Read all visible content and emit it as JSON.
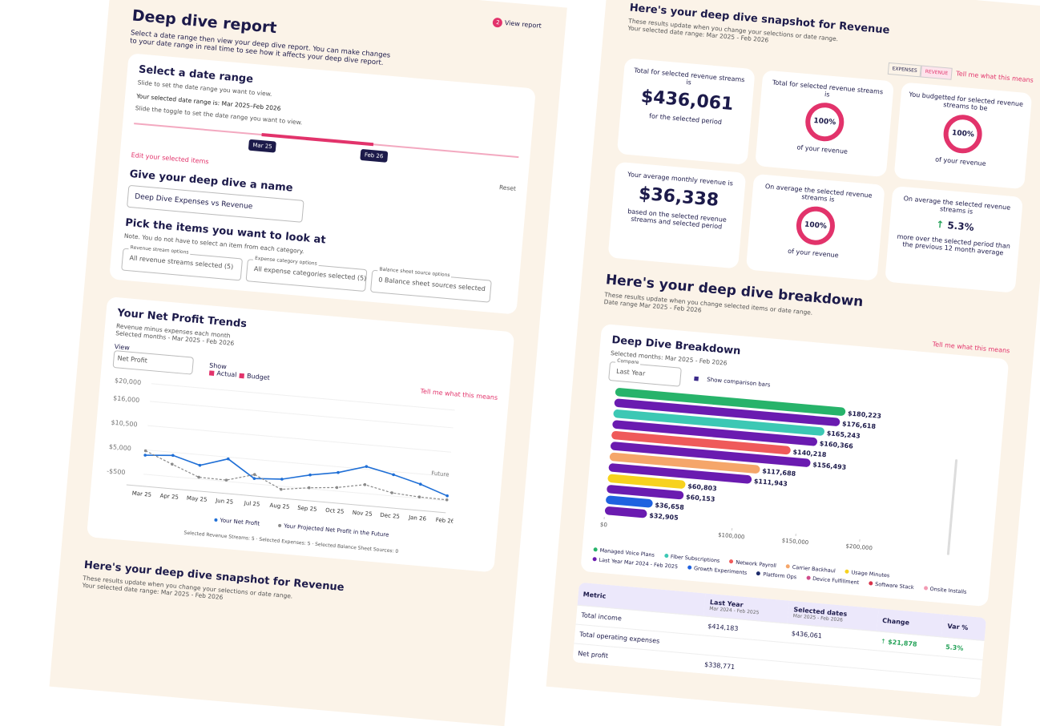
{
  "left": {
    "stepper": {
      "step": "2",
      "label": "View report"
    },
    "title": "Deep dive report",
    "intro": "Select a date range then view your deep dive report. You can make changes to your date range in real time to see how it affects your deep dive report.",
    "date_range": {
      "heading": "Select a date range",
      "hint": "Slide to set the date range you want to view.",
      "selected": "Your selected date range is: Mar 2025–Feb 2026",
      "slider_hint": "Slide the toggle to set the date range you want to view.",
      "start": "Mar 25",
      "end": "Feb 26",
      "edit": "Edit your selected items",
      "reset": "Reset"
    },
    "name": {
      "heading": "Give your deep dive a name",
      "value": "Deep Dive Expenses vs Revenue"
    },
    "items": {
      "heading": "Pick the items you want to look at",
      "note": "Note. You do not have to select an item from each category.",
      "selects": [
        {
          "label": "Revenue stream options",
          "value": "All revenue streams selected (5)"
        },
        {
          "label": "Expense category options",
          "value": "All expense categories selected (5)"
        },
        {
          "label": "Balance sheet source options",
          "value": "0 Balance sheet sources selected"
        }
      ]
    },
    "trends": {
      "title": "Your Net Profit Trends",
      "subtitle": "Revenue minus expenses each month",
      "months": "Selected months - Mar 2025 - Feb 2026",
      "view_label": "View",
      "view_value": "Net Profit",
      "show_label": "Show",
      "show": [
        "Actual",
        "Budget"
      ],
      "help": "Tell me what this means",
      "future": "Future",
      "chart": {
        "type": "line",
        "categories": [
          "Mar 25",
          "Apr 25",
          "May 25",
          "Jun 25",
          "Jul 25",
          "Aug 25",
          "Sep 25",
          "Oct 25",
          "Nov 25",
          "Dec 25",
          "Jan 26",
          "Feb 26"
        ],
        "series": [
          {
            "name": "Your Net Profit",
            "color": "#1f6fd6",
            "values": [
              3800,
              4300,
              2600,
              4600,
              700,
              1100,
              2600,
              3700,
              5600,
              4300,
              2700,
              600
            ]
          },
          {
            "name": "Your Projected Net Profit in the Future",
            "color": "#8a8a8a",
            "values": [
              4800,
              2300,
              -100,
              -200,
              1600,
              -1200,
              -300,
              300,
              1500,
              200,
              -200,
              -300
            ]
          }
        ],
        "ylim": [
          -2500,
          21000
        ],
        "yticks": [
          {
            "value": 20000,
            "label": "$20,000"
          },
          {
            "value": 16000,
            "label": "$16,000"
          },
          {
            "value": 10500,
            "label": "$10,500"
          },
          {
            "value": 5000,
            "label": "$5,000"
          },
          {
            "value": -500,
            "label": "-$500"
          }
        ]
      },
      "footer": "Selected Revenue Streams: 5 · Selected Expenses: 5 · Selected Balance Sheet Sources: 0"
    },
    "snapshot_repeat": {
      "title": "Here's your deep dive snapshot for Revenue",
      "subtitle": "These results update when you change your selections or date range.",
      "range": "Your selected date range: Mar 2025 - Feb 2026"
    }
  },
  "right": {
    "snapshot": {
      "title": "Here's your deep dive snapshot for Revenue",
      "subtitle": "These results update when you change your selections or date range.",
      "range": "Your selected date range: Mar 2025 - Feb 2026",
      "toggle": [
        "EXPENSES",
        "REVENUE"
      ],
      "help": "Tell me what this means",
      "cards": [
        {
          "top": "Total for selected revenue streams is",
          "big": "$436,061",
          "bottom": "for the selected period"
        },
        {
          "top": "Total for selected revenue streams is",
          "ring": "100%",
          "bottom": "of your revenue"
        },
        {
          "top": "You budgetted for selected revenue streams to be",
          "ring": "100%",
          "bottom": "of your revenue"
        },
        {
          "top": "Your average monthly revenue is",
          "big": "$36,338",
          "bottom": "based on the selected revenue streams and selected period"
        },
        {
          "top": "On average the selected revenue streams is",
          "ring": "100%",
          "bottom": "of your revenue"
        },
        {
          "top": "On average the selected revenue streams is",
          "up": "5.3%",
          "bottom": "more over the selected period than the previous 12 month average"
        }
      ]
    },
    "breakdown": {
      "title": "Here's your deep dive breakdown",
      "subtitle": "These results update when you change selected items or date range.",
      "range": "Date range Mar 2025 - Feb 2026",
      "help": "Tell me what this means",
      "card_title": "Deep Dive Breakdown",
      "months": "Selected months: Mar 2025 - Feb 2026",
      "compare_label": "Compare",
      "compare_value": "Last Year",
      "checkbox": "Show comparison bars",
      "chart": {
        "type": "bar",
        "orientation": "horizontal",
        "values": [
          180223,
          176618,
          165243,
          160366,
          140218,
          156493,
          117688,
          111943,
          60803,
          60153,
          36658,
          32905
        ],
        "value_labels": [
          "$180,223",
          "$176,618",
          "$165,243",
          "$160,366",
          "$140,218",
          "$156,493",
          "$117,688",
          "$111,943",
          "$60,803",
          "$60,153",
          "$36,658",
          "$32,905"
        ],
        "colors": [
          "#27b36a",
          "#6a1bb0",
          "#3cc8b4",
          "#6a1bb0",
          "#ef5a5a",
          "#6a1bb0",
          "#f5a66a",
          "#6a1bb0",
          "#f7d21e",
          "#6a1bb0",
          "#1f62e0",
          "#6a1bb0"
        ],
        "xlim": [
          0,
          200000
        ],
        "xticks": [
          {
            "value": 0,
            "label": "$0"
          },
          {
            "value": 100000,
            "label": "$100,000"
          },
          {
            "value": 150000,
            "label": "$150,000"
          },
          {
            "value": 200000,
            "label": "$200,000"
          }
        ],
        "legend": [
          {
            "name": "Managed Voice Plans",
            "color": "#27b36a"
          },
          {
            "name": "Fiber Subscriptions",
            "color": "#3cc8b4"
          },
          {
            "name": "Network Payroll",
            "color": "#ef5a5a"
          },
          {
            "name": "Carrier Backhaul",
            "color": "#f5a66a"
          },
          {
            "name": "Usage Minutes",
            "color": "#f7d21e"
          },
          {
            "name": "Last Year Mar 2024 - Feb 2025",
            "color": "#6a1bb0"
          },
          {
            "name": "Growth Experiments",
            "color": "#1f62e0"
          },
          {
            "name": "Platform Ops",
            "color": "#1c2a6a"
          },
          {
            "name": "Device Fulfillment",
            "color": "#d04b8a"
          },
          {
            "name": "Software Stack",
            "color": "#d8324a"
          },
          {
            "name": "Onsite Installs",
            "color": "#f29bb3"
          }
        ]
      }
    },
    "table": {
      "headers": [
        "Metric",
        "Last Year",
        "Selected dates",
        "Change",
        "Var %"
      ],
      "subheaders": [
        "Mar 2024 - Feb 2025",
        "Mar 2025 - Feb 2026"
      ],
      "rows": [
        [
          "Total income",
          "$414,183",
          "$436,061",
          "$21,878",
          "5.3%"
        ],
        [
          "Total operating expenses"
        ],
        [
          "Net profit",
          "$338,771"
        ]
      ]
    }
  }
}
